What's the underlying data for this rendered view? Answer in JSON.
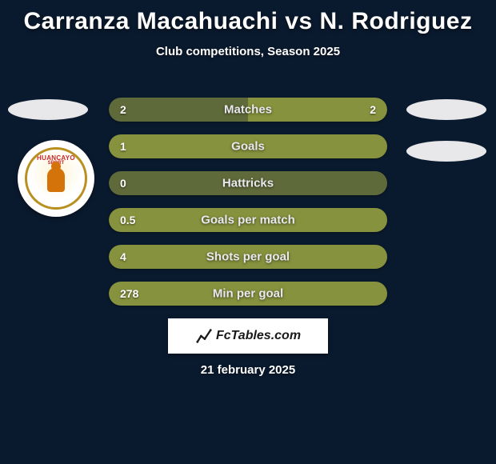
{
  "title": "Carranza Macahuachi vs N. Rodriguez",
  "subtitle": "Club competitions, Season 2025",
  "date": "21 february 2025",
  "footer_brand": "FcTables.com",
  "club_logo": {
    "line1": "HUANCAYO",
    "line2": "SPORT"
  },
  "colors": {
    "background": "#0a1a2e",
    "left_bar": "#5f6a3a",
    "right_bar": "#86923d",
    "text": "#ffffff",
    "bar_label": "#e8e8ee"
  },
  "stats": [
    {
      "label": "Matches",
      "left_value": "2",
      "right_value": "2",
      "left_pct": 50,
      "right_pct": 50,
      "left_color": "#5f6a3a",
      "right_color": "#86923d",
      "show_right_value": true
    },
    {
      "label": "Goals",
      "left_value": "1",
      "right_value": "",
      "left_pct": 100,
      "right_pct": 0,
      "left_color": "#86923d",
      "right_color": "#86923d",
      "show_right_value": false
    },
    {
      "label": "Hattricks",
      "left_value": "0",
      "right_value": "",
      "left_pct": 100,
      "right_pct": 0,
      "left_color": "#5f6a3a",
      "right_color": "#5f6a3a",
      "show_right_value": false
    },
    {
      "label": "Goals per match",
      "left_value": "0.5",
      "right_value": "",
      "left_pct": 100,
      "right_pct": 0,
      "left_color": "#86923d",
      "right_color": "#86923d",
      "show_right_value": false
    },
    {
      "label": "Shots per goal",
      "left_value": "4",
      "right_value": "",
      "left_pct": 100,
      "right_pct": 0,
      "left_color": "#86923d",
      "right_color": "#86923d",
      "show_right_value": false
    },
    {
      "label": "Min per goal",
      "left_value": "278",
      "right_value": "",
      "left_pct": 100,
      "right_pct": 0,
      "left_color": "#86923d",
      "right_color": "#86923d",
      "show_right_value": false
    }
  ]
}
